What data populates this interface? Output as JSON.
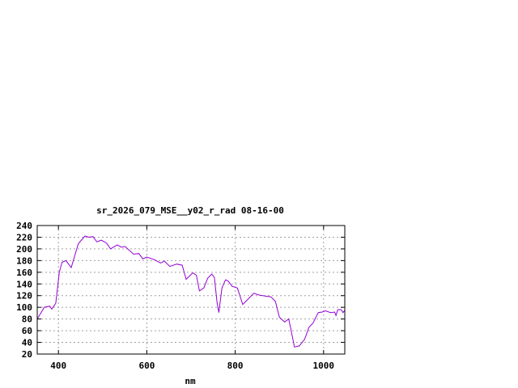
{
  "chart_data": {
    "type": "line",
    "title": "sr_2026_079_MSE__y02_r_rad 08-16-00",
    "xlabel": "nm",
    "ylabel": "",
    "xlim": [
      352,
      1048
    ],
    "ylim": [
      20,
      240
    ],
    "xticks": [
      400,
      600,
      800,
      1000
    ],
    "yticks": [
      20,
      40,
      60,
      80,
      100,
      120,
      140,
      160,
      180,
      200,
      220,
      240
    ],
    "grid": true,
    "line_color": "#9400d3",
    "series": [
      {
        "x": [
          352,
          368,
          380,
          385,
          394,
          402,
          408,
          417,
          429,
          445,
          460,
          469,
          478,
          487,
          497,
          509,
          518,
          533,
          542,
          551,
          570,
          582,
          591,
          600,
          616,
          631,
          640,
          652,
          668,
          680,
          689,
          704,
          712,
          719,
          729,
          738,
          747,
          753,
          759,
          763,
          770,
          778,
          784,
          793,
          805,
          817,
          829,
          842,
          854,
          869,
          881,
          891,
          900,
          912,
          921,
          927,
          934,
          945,
          957,
          967,
          976,
          988,
          997,
          1004,
          1016,
          1025,
          1028,
          1032,
          1040,
          1044,
          1048
        ],
        "y": [
          80,
          100,
          102,
          97,
          107,
          160,
          177,
          180,
          168,
          209,
          222,
          220,
          221,
          212,
          215,
          210,
          200,
          207,
          203,
          204,
          191,
          192,
          183,
          186,
          182,
          176,
          179,
          170,
          174,
          172,
          148,
          159,
          155,
          128,
          133,
          150,
          157,
          151,
          108,
          91,
          133,
          147,
          145,
          136,
          133,
          105,
          114,
          124,
          121,
          119,
          118,
          110,
          83,
          75,
          80,
          59,
          32,
          34,
          45,
          66,
          73,
          91,
          92,
          94,
          91,
          92,
          86,
          96,
          96,
          91,
          95
        ]
      }
    ]
  }
}
